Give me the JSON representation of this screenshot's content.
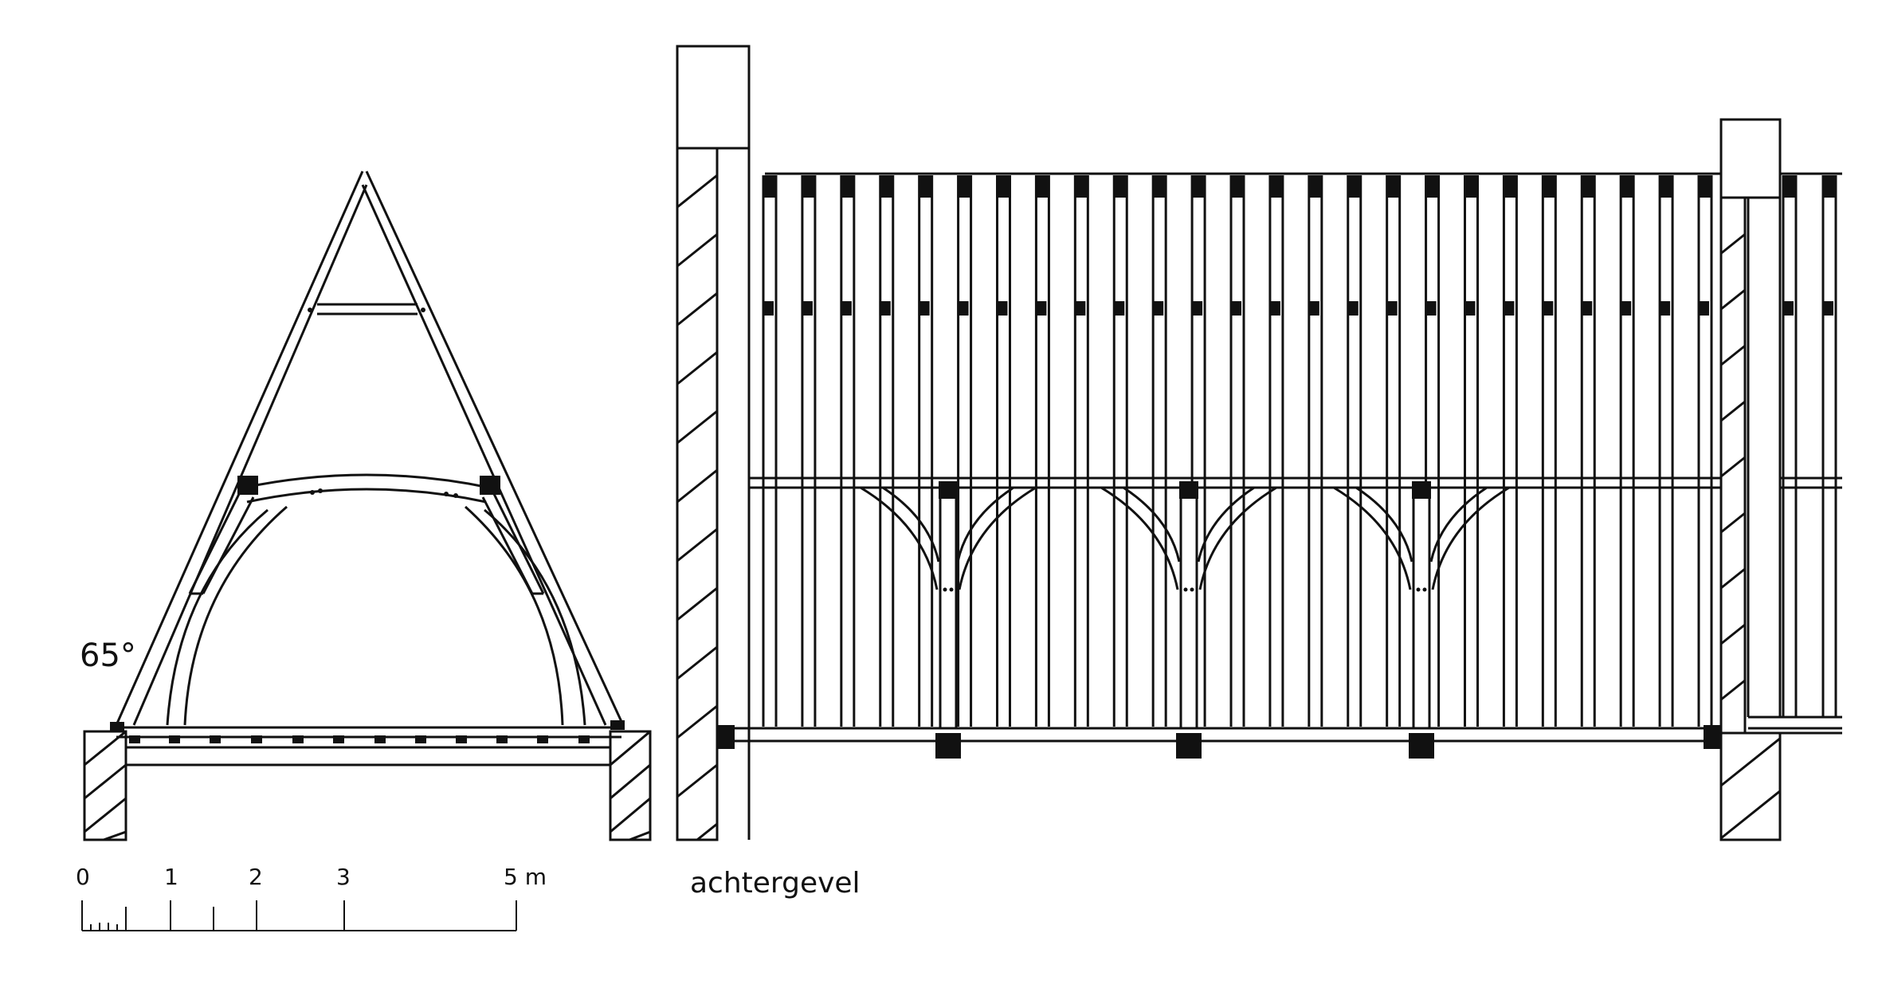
{
  "cross_section": {
    "angle_label": "65°"
  },
  "scale_bar": {
    "labels": [
      "0",
      "1",
      "2",
      "3",
      "5 m"
    ]
  },
  "elevation": {
    "label": "achtergevel",
    "rafter_count": 25,
    "truss_count": 3
  },
  "colors": {
    "ink": "#111111",
    "paper": "#ffffff"
  }
}
